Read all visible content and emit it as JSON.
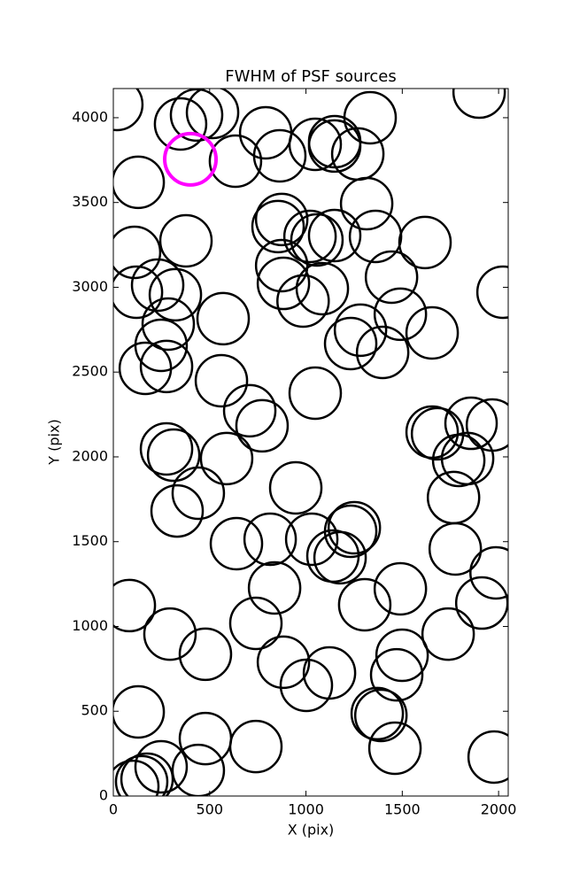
{
  "chart_data": {
    "type": "scatter",
    "title": "FWHM of PSF sources",
    "x_label": "X (pix)",
    "y_label": "Y (pix)",
    "xlim": [
      0,
      2050
    ],
    "ylim": [
      0,
      4172
    ],
    "xticks": [
      0,
      500,
      1000,
      1500,
      2000
    ],
    "yticks": [
      0,
      500,
      1000,
      1500,
      2000,
      2500,
      3000,
      3500,
      4000
    ],
    "series": [
      {
        "color": "#000000",
        "x": [
          18,
          349,
          432,
          515,
          1899,
          791,
          864,
          1048,
          1149,
          1149,
          1269,
          1333,
          634,
          129,
          1315,
          1361,
          1618,
          874,
          855,
          1021,
          1057,
          1149,
          377,
          110,
          874,
          883,
          1085,
          985,
          1444,
          1490,
          1655,
          1283,
          1232,
          1398,
          2023,
          230,
          120,
          322,
          285,
          248,
          276,
          166,
          570,
          561,
          1048,
          708,
          772,
          1655,
          1683,
          1857,
          1968,
          1793,
          1839,
          276,
          313,
          588,
          441,
          947,
          331,
          1766,
          1251,
          1232,
          1030,
          814,
          639,
          1140,
          1177,
          1775,
          1987,
          1490,
          837,
          83,
          1305,
          1913,
          1738,
          294,
          740,
          478,
          883,
          1499,
          1471,
          1122,
          1002,
          129,
          1370,
          1389,
          478,
          740,
          1462,
          1977,
          248,
          441,
          175,
          147,
          101
        ],
        "y": [
          4078,
          3963,
          4016,
          4031,
          4151,
          3911,
          3775,
          3843,
          3859,
          3833,
          3786,
          4000,
          3744,
          3619,
          3493,
          3300,
          3264,
          3400,
          3358,
          3300,
          3279,
          3305,
          3274,
          3206,
          3128,
          3023,
          2992,
          2919,
          3060,
          2841,
          2731,
          2747,
          2668,
          2616,
          2971,
          3013,
          2971,
          2956,
          2783,
          2658,
          2533,
          2522,
          2815,
          2449,
          2376,
          2272,
          2183,
          2146,
          2136,
          2198,
          2188,
          1979,
          1990,
          2047,
          2010,
          1990,
          1786,
          1817,
          1681,
          1760,
          1582,
          1561,
          1514,
          1514,
          1488,
          1415,
          1405,
          1457,
          1316,
          1222,
          1227,
          1123,
          1128,
          1138,
          955,
          955,
          1018,
          836,
          789,
          830,
          715,
          726,
          653,
          496,
          486,
          475,
          339,
          292,
          282,
          230,
          172,
          151,
          99,
          84,
          57
        ]
      },
      {
        "color": "#ff00ff",
        "x": [
          400
        ],
        "y": [
          3755
        ]
      }
    ]
  }
}
